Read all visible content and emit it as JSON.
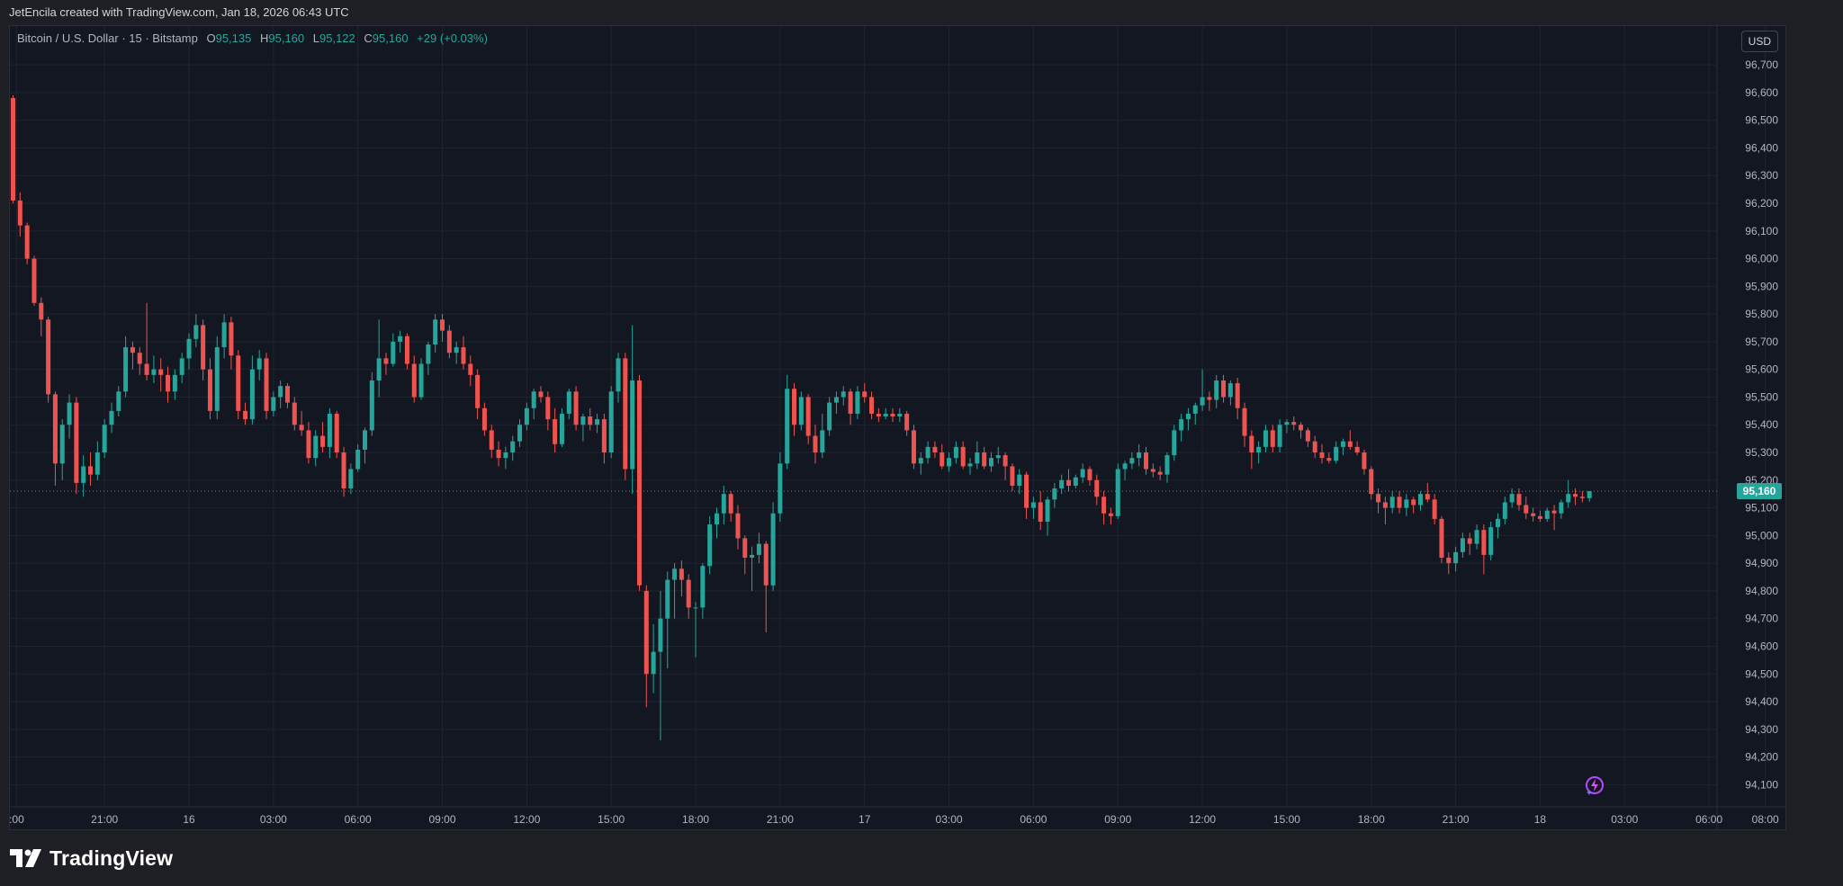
{
  "header": {
    "attribution": "JetEncila created with TradingView.com, Jan 18, 2026 06:43 UTC"
  },
  "legend": {
    "symbol": "Bitcoin / U.S. Dollar · 15 · Bitstamp",
    "open_label": "O",
    "open_value": "95,135",
    "high_label": "H",
    "high_value": "95,160",
    "low_label": "L",
    "low_value": "95,122",
    "close_label": "C",
    "close_value": "95,160",
    "change": "+29 (+0.03%)"
  },
  "currency_badge": "USD",
  "last_price_label": "95,160",
  "footer": {
    "brand": "TradingView"
  },
  "colors": {
    "up": "#26a69a",
    "down": "#ef5350",
    "background": "#131722",
    "grid": "#1f2431",
    "axis_text": "#b2b5be"
  },
  "icons": {
    "footer_logo": "tradingview-logo-icon",
    "corner": "tradingview-sparkle-icon"
  },
  "chart_data": {
    "type": "candlestick",
    "interval_minutes": 15,
    "start_time": "Jan 15, 2026 17:45 UTC",
    "last_price": 95160,
    "y_range": [
      94020,
      96840
    ],
    "y_ticks": [
      94100,
      94200,
      94300,
      94400,
      94500,
      94600,
      94700,
      94800,
      94900,
      95000,
      95100,
      95200,
      95300,
      95400,
      95500,
      95600,
      95700,
      95800,
      95900,
      96000,
      96100,
      96200,
      96300,
      96400,
      96500,
      96600,
      96700
    ],
    "x_ticks": [
      {
        "label": ":00",
        "t": 0.5
      },
      {
        "label": "21:00",
        "t": 13
      },
      {
        "label": "16",
        "t": 25
      },
      {
        "label": "03:00",
        "t": 37
      },
      {
        "label": "06:00",
        "t": 49
      },
      {
        "label": "09:00",
        "t": 61
      },
      {
        "label": "12:00",
        "t": 73
      },
      {
        "label": "15:00",
        "t": 85
      },
      {
        "label": "18:00",
        "t": 97
      },
      {
        "label": "21:00",
        "t": 109
      },
      {
        "label": "17",
        "t": 121
      },
      {
        "label": "03:00",
        "t": 133
      },
      {
        "label": "06:00",
        "t": 145
      },
      {
        "label": "09:00",
        "t": 157
      },
      {
        "label": "12:00",
        "t": 169
      },
      {
        "label": "15:00",
        "t": 181
      },
      {
        "label": "18:00",
        "t": 193
      },
      {
        "label": "21:00",
        "t": 205
      },
      {
        "label": "18",
        "t": 217
      },
      {
        "label": "03:00",
        "t": 229
      },
      {
        "label": "06:00",
        "t": 241
      },
      {
        "label": "08:00",
        "t": 249
      }
    ],
    "grid": true,
    "candles": [
      [
        96580,
        96590,
        96200,
        96210
      ],
      [
        96210,
        96240,
        96080,
        96120
      ],
      [
        96120,
        96130,
        95980,
        96000
      ],
      [
        96000,
        96010,
        95830,
        95840
      ],
      [
        95840,
        95860,
        95720,
        95780
      ],
      [
        95780,
        95790,
        95480,
        95510
      ],
      [
        95510,
        95520,
        95180,
        95260
      ],
      [
        95260,
        95420,
        95200,
        95400
      ],
      [
        95400,
        95510,
        95350,
        95480
      ],
      [
        95480,
        95500,
        95150,
        95190
      ],
      [
        95190,
        95290,
        95140,
        95250
      ],
      [
        95250,
        95300,
        95180,
        95220
      ],
      [
        95220,
        95340,
        95200,
        95300
      ],
      [
        95300,
        95420,
        95280,
        95400
      ],
      [
        95400,
        95480,
        95370,
        95450
      ],
      [
        95450,
        95540,
        95430,
        95520
      ],
      [
        95520,
        95720,
        95500,
        95680
      ],
      [
        95680,
        95700,
        95600,
        95660
      ],
      [
        95660,
        95680,
        95580,
        95620
      ],
      [
        95620,
        95840,
        95560,
        95580
      ],
      [
        95580,
        95650,
        95550,
        95600
      ],
      [
        95600,
        95640,
        95520,
        95580
      ],
      [
        95580,
        95610,
        95480,
        95520
      ],
      [
        95520,
        95600,
        95490,
        95580
      ],
      [
        95580,
        95660,
        95550,
        95640
      ],
      [
        95640,
        95730,
        95600,
        95710
      ],
      [
        95710,
        95800,
        95680,
        95760
      ],
      [
        95760,
        95780,
        95560,
        95600
      ],
      [
        95600,
        95640,
        95420,
        95450
      ],
      [
        95450,
        95720,
        95420,
        95680
      ],
      [
        95680,
        95800,
        95640,
        95770
      ],
      [
        95770,
        95790,
        95600,
        95650
      ],
      [
        95650,
        95670,
        95420,
        95450
      ],
      [
        95450,
        95480,
        95400,
        95420
      ],
      [
        95420,
        95650,
        95400,
        95600
      ],
      [
        95600,
        95670,
        95560,
        95640
      ],
      [
        95640,
        95660,
        95420,
        95450
      ],
      [
        95450,
        95520,
        95430,
        95500
      ],
      [
        95500,
        95560,
        95460,
        95540
      ],
      [
        95540,
        95550,
        95460,
        95480
      ],
      [
        95480,
        95500,
        95380,
        95400
      ],
      [
        95400,
        95450,
        95360,
        95380
      ],
      [
        95380,
        95410,
        95260,
        95280
      ],
      [
        95280,
        95380,
        95250,
        95360
      ],
      [
        95360,
        95410,
        95300,
        95320
      ],
      [
        95320,
        95460,
        95280,
        95440
      ],
      [
        95440,
        95450,
        95280,
        95300
      ],
      [
        95300,
        95320,
        95140,
        95170
      ],
      [
        95170,
        95260,
        95150,
        95240
      ],
      [
        95240,
        95330,
        95230,
        95310
      ],
      [
        95310,
        95390,
        95260,
        95380
      ],
      [
        95380,
        95590,
        95360,
        95560
      ],
      [
        95560,
        95780,
        95500,
        95640
      ],
      [
        95640,
        95660,
        95580,
        95620
      ],
      [
        95620,
        95730,
        95610,
        95700
      ],
      [
        95700,
        95740,
        95660,
        95720
      ],
      [
        95720,
        95730,
        95600,
        95620
      ],
      [
        95620,
        95650,
        95480,
        95500
      ],
      [
        95500,
        95640,
        95490,
        95620
      ],
      [
        95620,
        95700,
        95580,
        95690
      ],
      [
        95690,
        95800,
        95660,
        95780
      ],
      [
        95780,
        95800,
        95700,
        95740
      ],
      [
        95740,
        95760,
        95640,
        95660
      ],
      [
        95660,
        95700,
        95620,
        95680
      ],
      [
        95680,
        95720,
        95600,
        95620
      ],
      [
        95620,
        95650,
        95540,
        95580
      ],
      [
        95580,
        95600,
        95420,
        95460
      ],
      [
        95460,
        95480,
        95360,
        95380
      ],
      [
        95380,
        95400,
        95280,
        95310
      ],
      [
        95310,
        95340,
        95250,
        95280
      ],
      [
        95280,
        95320,
        95240,
        95300
      ],
      [
        95300,
        95360,
        95270,
        95340
      ],
      [
        95340,
        95420,
        95320,
        95400
      ],
      [
        95400,
        95480,
        95380,
        95460
      ],
      [
        95460,
        95530,
        95420,
        95520
      ],
      [
        95520,
        95540,
        95480,
        95500
      ],
      [
        95500,
        95520,
        95380,
        95420
      ],
      [
        95420,
        95460,
        95300,
        95330
      ],
      [
        95330,
        95460,
        95320,
        95440
      ],
      [
        95440,
        95530,
        95420,
        95520
      ],
      [
        95520,
        95540,
        95380,
        95400
      ],
      [
        95400,
        95440,
        95340,
        95430
      ],
      [
        95430,
        95460,
        95380,
        95400
      ],
      [
        95400,
        95440,
        95370,
        95420
      ],
      [
        95420,
        95440,
        95260,
        95300
      ],
      [
        95300,
        95540,
        95280,
        95520
      ],
      [
        95520,
        95660,
        95480,
        95640
      ],
      [
        95640,
        95660,
        95200,
        95240
      ],
      [
        95240,
        95760,
        95150,
        95560
      ],
      [
        95560,
        95580,
        94800,
        94820
      ],
      [
        94800,
        94820,
        94380,
        94500
      ],
      [
        94500,
        94680,
        94430,
        94580
      ],
      [
        94580,
        94800,
        94260,
        94700
      ],
      [
        94700,
        94870,
        94520,
        94840
      ],
      [
        94840,
        94900,
        94700,
        94880
      ],
      [
        94880,
        94910,
        94780,
        94840
      ],
      [
        94840,
        94860,
        94700,
        94740
      ],
      [
        94740,
        94760,
        94560,
        94740
      ],
      [
        94740,
        94900,
        94700,
        94890
      ],
      [
        94890,
        95070,
        94860,
        95040
      ],
      [
        95040,
        95100,
        94990,
        95080
      ],
      [
        95080,
        95180,
        95040,
        95150
      ],
      [
        95150,
        95160,
        95050,
        95080
      ],
      [
        95080,
        95110,
        94950,
        94990
      ],
      [
        94990,
        95000,
        94860,
        94920
      ],
      [
        94920,
        94960,
        94800,
        94930
      ],
      [
        94930,
        95010,
        94900,
        94970
      ],
      [
        94970,
        94980,
        94650,
        94820
      ],
      [
        94820,
        95120,
        94800,
        95080
      ],
      [
        95080,
        95300,
        95050,
        95260
      ],
      [
        95260,
        95580,
        95240,
        95530
      ],
      [
        95530,
        95550,
        95360,
        95400
      ],
      [
        95400,
        95520,
        95380,
        95500
      ],
      [
        95500,
        95510,
        95330,
        95360
      ],
      [
        95360,
        95400,
        95260,
        95300
      ],
      [
        95300,
        95440,
        95280,
        95380
      ],
      [
        95380,
        95500,
        95360,
        95480
      ],
      [
        95480,
        95520,
        95440,
        95500
      ],
      [
        95500,
        95540,
        95470,
        95520
      ],
      [
        95520,
        95530,
        95400,
        95440
      ],
      [
        95440,
        95540,
        95420,
        95520
      ],
      [
        95520,
        95550,
        95480,
        95500
      ],
      [
        95500,
        95520,
        95420,
        95440
      ],
      [
        95440,
        95460,
        95410,
        95430
      ],
      [
        95430,
        95460,
        95420,
        95440
      ],
      [
        95440,
        95460,
        95410,
        95430
      ],
      [
        95430,
        95460,
        95410,
        95440
      ],
      [
        95440,
        95450,
        95360,
        95380
      ],
      [
        95380,
        95400,
        95240,
        95260
      ],
      [
        95260,
        95300,
        95220,
        95280
      ],
      [
        95280,
        95340,
        95260,
        95320
      ],
      [
        95320,
        95340,
        95280,
        95300
      ],
      [
        95300,
        95330,
        95240,
        95250
      ],
      [
        95250,
        95300,
        95230,
        95280
      ],
      [
        95280,
        95340,
        95260,
        95320
      ],
      [
        95320,
        95340,
        95240,
        95250
      ],
      [
        95250,
        95280,
        95220,
        95260
      ],
      [
        95260,
        95340,
        95240,
        95300
      ],
      [
        95300,
        95320,
        95240,
        95250
      ],
      [
        95250,
        95300,
        95230,
        95280
      ],
      [
        95280,
        95320,
        95260,
        95290
      ],
      [
        95290,
        95300,
        95200,
        95250
      ],
      [
        95250,
        95260,
        95160,
        95180
      ],
      [
        95180,
        95240,
        95150,
        95220
      ],
      [
        95220,
        95230,
        95060,
        95100
      ],
      [
        95100,
        95140,
        95060,
        95120
      ],
      [
        95120,
        95160,
        95020,
        95050
      ],
      [
        95050,
        95140,
        95000,
        95130
      ],
      [
        95130,
        95190,
        95100,
        95170
      ],
      [
        95170,
        95220,
        95150,
        95200
      ],
      [
        95200,
        95240,
        95160,
        95180
      ],
      [
        95180,
        95220,
        95170,
        95210
      ],
      [
        95210,
        95260,
        95190,
        95240
      ],
      [
        95240,
        95250,
        95180,
        95200
      ],
      [
        95200,
        95220,
        95110,
        95140
      ],
      [
        95140,
        95160,
        95040,
        95080
      ],
      [
        95080,
        95100,
        95040,
        95070
      ],
      [
        95070,
        95260,
        95060,
        95240
      ],
      [
        95240,
        95270,
        95200,
        95260
      ],
      [
        95260,
        95300,
        95240,
        95280
      ],
      [
        95280,
        95330,
        95250,
        95300
      ],
      [
        95300,
        95320,
        95220,
        95240
      ],
      [
        95240,
        95260,
        95210,
        95230
      ],
      [
        95230,
        95250,
        95200,
        95220
      ],
      [
        95220,
        95300,
        95190,
        95290
      ],
      [
        95290,
        95400,
        95270,
        95380
      ],
      [
        95380,
        95440,
        95340,
        95420
      ],
      [
        95420,
        95460,
        95380,
        95440
      ],
      [
        95440,
        95480,
        95400,
        95470
      ],
      [
        95470,
        95600,
        95450,
        95500
      ],
      [
        95500,
        95520,
        95450,
        95490
      ],
      [
        95490,
        95580,
        95460,
        95560
      ],
      [
        95560,
        95580,
        95480,
        95500
      ],
      [
        95500,
        95560,
        95470,
        95550
      ],
      [
        95550,
        95570,
        95420,
        95460
      ],
      [
        95460,
        95480,
        95320,
        95360
      ],
      [
        95360,
        95380,
        95240,
        95300
      ],
      [
        95300,
        95340,
        95260,
        95320
      ],
      [
        95320,
        95400,
        95300,
        95380
      ],
      [
        95380,
        95400,
        95300,
        95320
      ],
      [
        95320,
        95420,
        95300,
        95400
      ],
      [
        95400,
        95420,
        95370,
        95410
      ],
      [
        95410,
        95430,
        95380,
        95400
      ],
      [
        95400,
        95410,
        95350,
        95380
      ],
      [
        95380,
        95390,
        95320,
        95340
      ],
      [
        95340,
        95360,
        95280,
        95300
      ],
      [
        95300,
        95330,
        95260,
        95280
      ],
      [
        95280,
        95300,
        95260,
        95270
      ],
      [
        95270,
        95340,
        95260,
        95320
      ],
      [
        95320,
        95350,
        95290,
        95340
      ],
      [
        95340,
        95380,
        95310,
        95320
      ],
      [
        95320,
        95340,
        95290,
        95300
      ],
      [
        95300,
        95310,
        95220,
        95240
      ],
      [
        95240,
        95250,
        95130,
        95150
      ],
      [
        95150,
        95170,
        95080,
        95120
      ],
      [
        95120,
        95140,
        95040,
        95100
      ],
      [
        95100,
        95160,
        95080,
        95140
      ],
      [
        95140,
        95160,
        95080,
        95100
      ],
      [
        95100,
        95150,
        95070,
        95130
      ],
      [
        95130,
        95140,
        95080,
        95110
      ],
      [
        95110,
        95160,
        95090,
        95150
      ],
      [
        95150,
        95190,
        95120,
        95130
      ],
      [
        95130,
        95150,
        95040,
        95060
      ],
      [
        95060,
        95070,
        94900,
        94920
      ],
      [
        94920,
        94940,
        94860,
        94900
      ],
      [
        94900,
        94960,
        94870,
        94940
      ],
      [
        94940,
        95010,
        94920,
        94990
      ],
      [
        94990,
        95010,
        94930,
        94970
      ],
      [
        94970,
        95040,
        94950,
        95020
      ],
      [
        95020,
        95040,
        94860,
        94930
      ],
      [
        94930,
        95050,
        94910,
        95030
      ],
      [
        95030,
        95080,
        94990,
        95060
      ],
      [
        95060,
        95140,
        95040,
        95120
      ],
      [
        95120,
        95170,
        95100,
        95150
      ],
      [
        95150,
        95170,
        95090,
        95110
      ],
      [
        95110,
        95140,
        95060,
        95080
      ],
      [
        95080,
        95100,
        95050,
        95070
      ],
      [
        95070,
        95090,
        95050,
        95060
      ],
      [
        95060,
        95100,
        95050,
        95090
      ],
      [
        95090,
        95110,
        95020,
        95080
      ],
      [
        95080,
        95130,
        95060,
        95120
      ],
      [
        95120,
        95200,
        95100,
        95150
      ],
      [
        95150,
        95170,
        95110,
        95140
      ],
      [
        95140,
        95160,
        95120,
        95135
      ],
      [
        95135,
        95160,
        95122,
        95160
      ]
    ]
  }
}
